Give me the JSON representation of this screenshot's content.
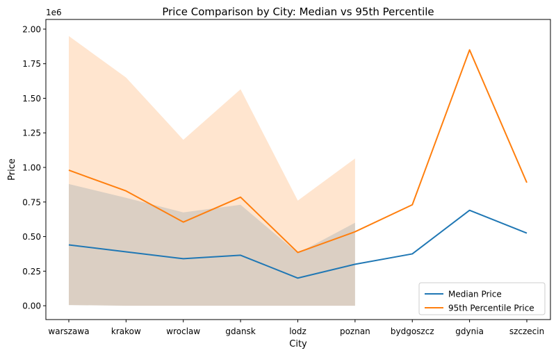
{
  "chart_data": {
    "type": "line",
    "title": "Price Comparison by City: Median vs 95th Percentile",
    "xlabel": "City",
    "ylabel": "Price",
    "y_offset_label": "1e6",
    "categories": [
      "warszawa",
      "krakow",
      "wroclaw",
      "gdansk",
      "lodz",
      "poznan",
      "bydgoszcz",
      "gdynia",
      "szczecin"
    ],
    "ylim": [
      -0.1,
      2.07
    ],
    "yticks": [
      0.0,
      0.25,
      0.5,
      0.75,
      1.0,
      1.25,
      1.5,
      1.75,
      2.0
    ],
    "ytick_labels": [
      "0.00",
      "0.25",
      "0.50",
      "0.75",
      "1.00",
      "1.25",
      "1.50",
      "1.75",
      "2.00"
    ],
    "grid": false,
    "legend_position": "lower-right",
    "series": [
      {
        "name": "Median Price",
        "color": "#1f77b4",
        "values": [
          0.44,
          0.39,
          0.34,
          0.365,
          0.2,
          0.3,
          0.375,
          0.69,
          0.525
        ],
        "band_lower": [
          0.005,
          0.0,
          0.0,
          0.0,
          0.0,
          0.0
        ],
        "band_upper": [
          0.88,
          0.78,
          0.675,
          0.73,
          0.38,
          0.6
        ]
      },
      {
        "name": "95th Percentile Price",
        "color": "#ff7f0e",
        "values": [
          0.98,
          0.83,
          0.605,
          0.785,
          0.385,
          0.535,
          0.73,
          1.85,
          0.89
        ],
        "band_lower": [
          0.005,
          0.0,
          0.0,
          0.0,
          0.0,
          0.0
        ],
        "band_upper": [
          1.95,
          1.65,
          1.2,
          1.565,
          0.76,
          1.065
        ]
      }
    ]
  }
}
